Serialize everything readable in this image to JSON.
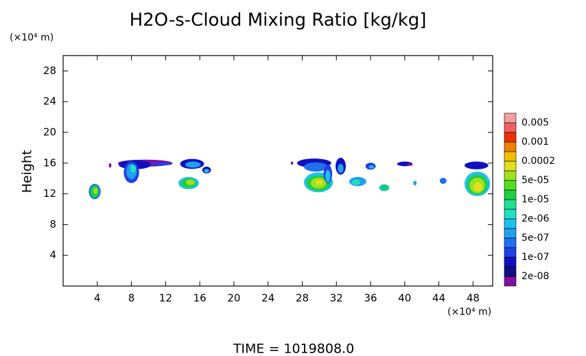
{
  "chart_data": {
    "type": "contour",
    "title": "H2O-s-Cloud Mixing Ratio [kg/kg]",
    "ylabel": "Height",
    "yunit": "(×10⁴ m)",
    "xunit": "(×10⁴ m)",
    "footer": "TIME = 1019808.0",
    "xlim": [
      0,
      50.3
    ],
    "ylim": [
      0,
      30
    ],
    "xticks": [
      4,
      8,
      12,
      16,
      20,
      24,
      28,
      32,
      36,
      40,
      44,
      48
    ],
    "yticks": [
      4,
      8,
      12,
      16,
      20,
      24,
      28
    ],
    "colorbar": {
      "colors": [
        "#8010a0",
        "#101080",
        "#1010c0",
        "#2040e8",
        "#2070f0",
        "#20a0f0",
        "#20c0f0",
        "#20e0c0",
        "#20e090",
        "#20d040",
        "#50e020",
        "#a0e020",
        "#e0e020",
        "#f0c000",
        "#f08000",
        "#f03000",
        "#f06060",
        "#f0a0a0"
      ],
      "labels": [
        {
          "value": 2e-08,
          "label": "2e-08"
        },
        {
          "value": 1e-07,
          "label": "1e-07"
        },
        {
          "value": 5e-07,
          "label": "5e-07"
        },
        {
          "value": 2e-06,
          "label": "2e-06"
        },
        {
          "value": 1e-05,
          "label": "1e-05"
        },
        {
          "value": 5e-05,
          "label": "5e-05"
        },
        {
          "value": 0.0002,
          "label": "0.0002"
        },
        {
          "value": 0.001,
          "label": "0.001"
        },
        {
          "value": 0.005,
          "label": "0.005"
        }
      ]
    },
    "patches": [
      {
        "x": 3.7,
        "y": 12.3,
        "rx": 0.7,
        "ry": 1.0,
        "color": "#2070f0"
      },
      {
        "x": 3.7,
        "y": 12.3,
        "rx": 0.5,
        "ry": 0.8,
        "color": "#20d040"
      },
      {
        "x": 3.8,
        "y": 12.4,
        "rx": 0.25,
        "ry": 0.4,
        "color": "#a0e020"
      },
      {
        "x": 5.5,
        "y": 15.7,
        "rx": 0.15,
        "ry": 0.3,
        "color": "#8010a0"
      },
      {
        "x": 9.6,
        "y": 16.0,
        "rx": 3.2,
        "ry": 0.45,
        "color": "#8010a0"
      },
      {
        "x": 8.4,
        "y": 15.8,
        "rx": 1.9,
        "ry": 0.6,
        "color": "#1010c0"
      },
      {
        "x": 8.0,
        "y": 14.8,
        "rx": 0.9,
        "ry": 1.4,
        "color": "#2040e8"
      },
      {
        "x": 8.0,
        "y": 14.9,
        "rx": 0.6,
        "ry": 1.0,
        "color": "#20a0f0"
      },
      {
        "x": 8.2,
        "y": 15.3,
        "rx": 0.35,
        "ry": 0.5,
        "color": "#20e0c0"
      },
      {
        "x": 11.5,
        "y": 15.9,
        "rx": 1.3,
        "ry": 0.2,
        "color": "#2040e8"
      },
      {
        "x": 15.1,
        "y": 15.9,
        "rx": 1.4,
        "ry": 0.65,
        "color": "#1010c0"
      },
      {
        "x": 15.2,
        "y": 15.8,
        "rx": 0.9,
        "ry": 0.4,
        "color": "#20a0f0"
      },
      {
        "x": 14.7,
        "y": 13.4,
        "rx": 1.2,
        "ry": 0.8,
        "color": "#20c0f0"
      },
      {
        "x": 14.7,
        "y": 13.4,
        "rx": 0.9,
        "ry": 0.6,
        "color": "#20d040"
      },
      {
        "x": 14.9,
        "y": 13.5,
        "rx": 0.5,
        "ry": 0.35,
        "color": "#a0e020"
      },
      {
        "x": 16.8,
        "y": 15.1,
        "rx": 0.5,
        "ry": 0.45,
        "color": "#1010c0"
      },
      {
        "x": 16.8,
        "y": 15.0,
        "rx": 0.3,
        "ry": 0.25,
        "color": "#20c0f0"
      },
      {
        "x": 26.8,
        "y": 16.0,
        "rx": 0.15,
        "ry": 0.2,
        "color": "#8010a0"
      },
      {
        "x": 29.4,
        "y": 16.0,
        "rx": 2.0,
        "ry": 0.6,
        "color": "#1010c0"
      },
      {
        "x": 29.6,
        "y": 15.5,
        "rx": 1.4,
        "ry": 0.6,
        "color": "#2070f0"
      },
      {
        "x": 29.9,
        "y": 13.5,
        "rx": 1.7,
        "ry": 1.3,
        "color": "#20c0f0"
      },
      {
        "x": 29.9,
        "y": 13.4,
        "rx": 1.4,
        "ry": 1.0,
        "color": "#20d040"
      },
      {
        "x": 29.9,
        "y": 13.4,
        "rx": 0.9,
        "ry": 0.7,
        "color": "#a0e020"
      },
      {
        "x": 30.0,
        "y": 13.5,
        "rx": 0.4,
        "ry": 0.35,
        "color": "#e0e020"
      },
      {
        "x": 31.0,
        "y": 14.6,
        "rx": 0.5,
        "ry": 1.2,
        "color": "#2040e8"
      },
      {
        "x": 31.0,
        "y": 14.3,
        "rx": 0.3,
        "ry": 0.8,
        "color": "#20c0f0"
      },
      {
        "x": 32.5,
        "y": 15.6,
        "rx": 0.6,
        "ry": 1.1,
        "color": "#1010c0"
      },
      {
        "x": 32.5,
        "y": 15.3,
        "rx": 0.35,
        "ry": 0.6,
        "color": "#20a0f0"
      },
      {
        "x": 34.5,
        "y": 13.6,
        "rx": 1.0,
        "ry": 0.6,
        "color": "#20a0f0"
      },
      {
        "x": 34.3,
        "y": 13.5,
        "rx": 0.5,
        "ry": 0.35,
        "color": "#20e0c0"
      },
      {
        "x": 36.0,
        "y": 15.6,
        "rx": 0.6,
        "ry": 0.45,
        "color": "#2040e8"
      },
      {
        "x": 36.1,
        "y": 15.5,
        "rx": 0.3,
        "ry": 0.2,
        "color": "#20c0f0"
      },
      {
        "x": 37.6,
        "y": 12.8,
        "rx": 0.6,
        "ry": 0.45,
        "color": "#20c0f0"
      },
      {
        "x": 37.6,
        "y": 12.8,
        "rx": 0.4,
        "ry": 0.3,
        "color": "#20d040"
      },
      {
        "x": 40.0,
        "y": 15.9,
        "rx": 0.9,
        "ry": 0.3,
        "color": "#1010c0"
      },
      {
        "x": 40.6,
        "y": 15.8,
        "rx": 0.35,
        "ry": 0.15,
        "color": "#8010a0"
      },
      {
        "x": 41.2,
        "y": 13.4,
        "rx": 0.2,
        "ry": 0.3,
        "color": "#20a0f0"
      },
      {
        "x": 44.5,
        "y": 13.7,
        "rx": 0.4,
        "ry": 0.4,
        "color": "#2070f0"
      },
      {
        "x": 48.4,
        "y": 15.7,
        "rx": 1.4,
        "ry": 0.5,
        "color": "#1010c0"
      },
      {
        "x": 48.5,
        "y": 13.3,
        "rx": 1.5,
        "ry": 1.6,
        "color": "#20c0f0"
      },
      {
        "x": 48.5,
        "y": 13.2,
        "rx": 1.2,
        "ry": 1.3,
        "color": "#20d040"
      },
      {
        "x": 48.5,
        "y": 13.1,
        "rx": 0.9,
        "ry": 1.0,
        "color": "#a0e020"
      },
      {
        "x": 48.6,
        "y": 12.9,
        "rx": 0.5,
        "ry": 0.6,
        "color": "#e0e020"
      }
    ]
  }
}
